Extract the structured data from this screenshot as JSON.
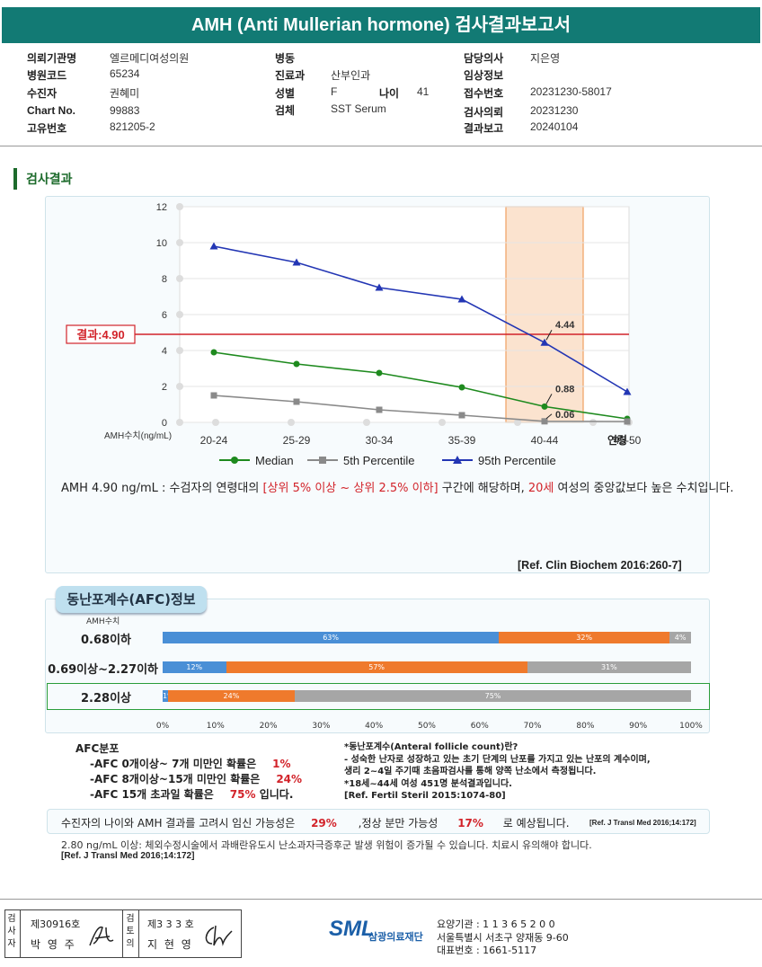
{
  "header": {
    "title": "AMH (Anti Mullerian hormone) 검사결과보고서"
  },
  "info": {
    "col1": [
      {
        "label": "의뢰기관명",
        "value": "엘르메디여성의원"
      },
      {
        "label": "병원코드",
        "value": "65234"
      },
      {
        "label": "수진자",
        "value": "권혜미"
      },
      {
        "label": "Chart No.",
        "value": "99883"
      },
      {
        "label": "고유번호",
        "value": "821205-2"
      }
    ],
    "col2": [
      {
        "label": "병동",
        "value": ""
      },
      {
        "label": "진료과",
        "value": "산부인과"
      },
      {
        "label": "성별",
        "value": "F"
      },
      {
        "label": "검체",
        "value": "SST Serum"
      }
    ],
    "age_label": "나이",
    "age_value": "41",
    "col3": [
      {
        "label": "담당의사",
        "value": "지은영"
      },
      {
        "label": "임상정보",
        "value": ""
      },
      {
        "label": "접수번호",
        "value": "20231230-58017"
      },
      {
        "label": "검사의뢰",
        "value": "20231230"
      },
      {
        "label": "결과보고",
        "value": "20240104"
      }
    ]
  },
  "section_title": "검사결과",
  "chart_data": {
    "type": "line",
    "categories": [
      "20-24",
      "25-29",
      "30-34",
      "35-39",
      "40-44",
      "45-50"
    ],
    "xlabel": "연령",
    "ylabel": "AMH수치(ng/mL)",
    "ylim": [
      0,
      12
    ],
    "yticks": [
      "0",
      "2",
      "4",
      "6",
      "8",
      "10",
      "12"
    ],
    "series": [
      {
        "name": "Median",
        "color": "#1e8a1e",
        "values": [
          3.9,
          3.25,
          2.75,
          1.95,
          0.88,
          0.2
        ]
      },
      {
        "name": "5th Percentile",
        "color": "#8a8a8a",
        "values": [
          1.5,
          1.15,
          0.7,
          0.4,
          0.06,
          0.05
        ]
      },
      {
        "name": "95th Percentile",
        "color": "#2336b4",
        "values": [
          9.8,
          8.9,
          7.5,
          6.85,
          4.44,
          1.7
        ]
      }
    ],
    "result_line": {
      "label": "결과:4.90",
      "value": 4.9,
      "color": "#d2232a"
    },
    "highlight_category": "40-44",
    "annotations": [
      "4.44",
      "0.88",
      "0.06"
    ],
    "grid": true,
    "legend": "bottom"
  },
  "interpretation": {
    "part1": "AMH  4.90 ng/mL : 수검자의 연령대의 ",
    "part2": "[상위 5% 이상 ~ 상위 2.5% 이하]",
    "part3": "  구간에 해당하며, ",
    "part4": "20세",
    "part5": " 여성의 중앙값보다 높은 수치입니다."
  },
  "ref1": "[Ref. Clin Biochem 2016:260-7]",
  "afc": {
    "tab": "동난포계수(AFC)정보",
    "amh_header": "AMH수치",
    "rows": [
      {
        "label": "0.68이하",
        "segments": [
          {
            "value": 63,
            "text": "63%",
            "color": "#4a8fd6"
          },
          {
            "value": 32,
            "text": "32%",
            "color": "#ef7a2c"
          },
          {
            "value": 4,
            "text": "4%",
            "color": "#a6a6a6"
          }
        ]
      },
      {
        "label": "0.69이상~2.27이하",
        "segments": [
          {
            "value": 12,
            "text": "12%",
            "color": "#4a8fd6"
          },
          {
            "value": 57,
            "text": "57%",
            "color": "#ef7a2c"
          },
          {
            "value": 31,
            "text": "31%",
            "color": "#a6a6a6"
          }
        ]
      },
      {
        "label": "2.28이상",
        "segments": [
          {
            "value": 1,
            "text": "1%",
            "color": "#4a8fd6"
          },
          {
            "value": 24,
            "text": "24%",
            "color": "#ef7a2c"
          },
          {
            "value": 75,
            "text": "75%",
            "color": "#a6a6a6"
          }
        ]
      }
    ],
    "xticks": [
      "0%",
      "10%",
      "20%",
      "30%",
      "40%",
      "50%",
      "60%",
      "70%",
      "80%",
      "90%",
      "100%"
    ],
    "dist_title": "AFC분포",
    "dist": [
      {
        "text": "-AFC  0개이상~ 7개 미만인 확률은",
        "pct": "1%",
        "tail": ""
      },
      {
        "text": "-AFC  8개이상~15개 미만인 확률은",
        "pct": "24%",
        "tail": ""
      },
      {
        "text": "-AFC  15개 초과일 확률은",
        "pct": "75%",
        "tail": " 입니다."
      }
    ],
    "note_lines": [
      "*동난포계수(Anteral follicle count)란?",
      "- 성숙한 난자로 성장하고 있는 초기 단계의 난포를 가지고 있는 난포의 계수이며,",
      "   생리 2~4일 주기때 초음파검사를 통해 양쪽 난소에서 측정됩니다.",
      "*18세~44세 여성 451명 분석결과입니다.",
      "[Ref. Fertil Steril 2015:1074-80]"
    ]
  },
  "pregnancy": {
    "a": "수진자의  나이와 AMH 결과를 고려시 임신 가능성은",
    "b": "29%",
    "c": ",정상 분만 가능성",
    "d": "17%",
    "e": "로 예상됩니다.",
    "ref": "[Ref. J Transl Med 2016;14:172]"
  },
  "warning": "2.80  ng/mL  이상: 체외수정시술에서 과배란유도시 난소과자극증후군 발생 위험이 증가될 수 있습니다. 치료시 유의해야 합니다.",
  "ref3": "[Ref. J Transl Med 2016;14:172]",
  "footer": {
    "checker_label": "검사자",
    "checker_no": "제30916호",
    "checker_name": "박 영 주",
    "reviewer_label": "검토의",
    "reviewer_no": "제3 3 3 호",
    "reviewer_name": "지 현 영",
    "logo": "SML",
    "company": "삼광의료재단",
    "code": "요양기관 : 1 1 3 6 5 2 0 0",
    "address": "서울특별시 서초구 양재동 9-60",
    "phone": "대표번호 : 1661-5117"
  }
}
